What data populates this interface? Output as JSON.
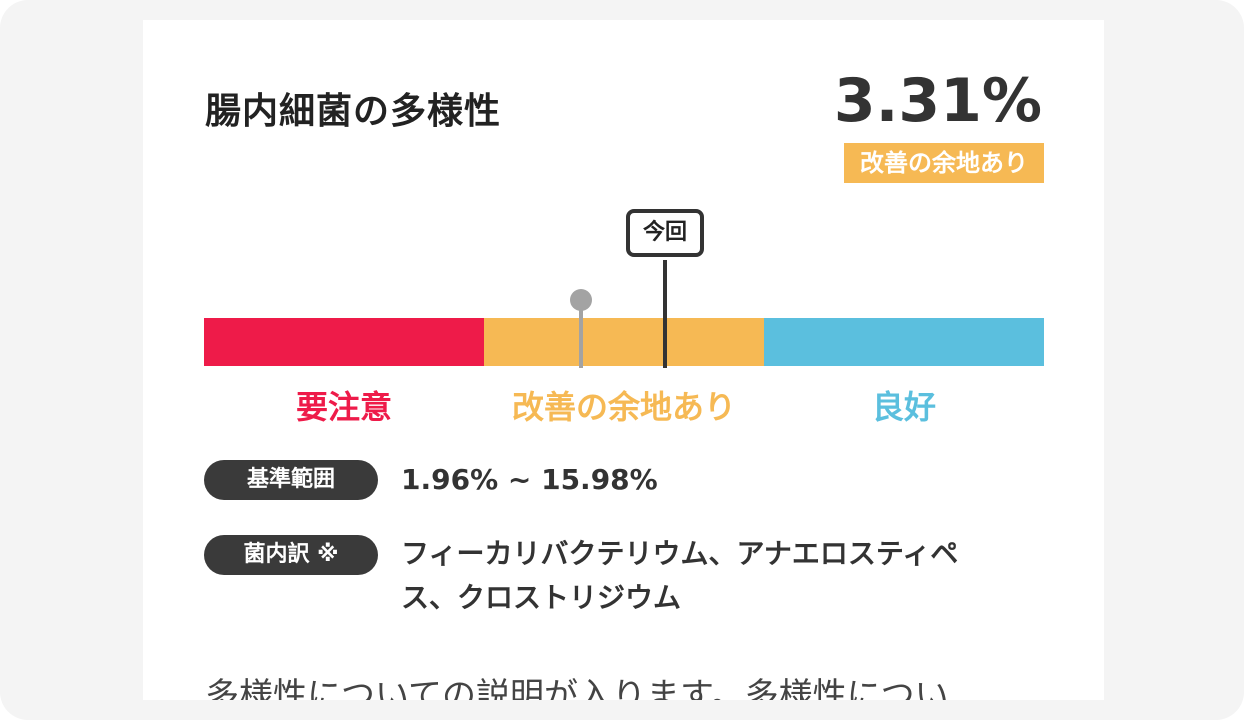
{
  "card": {
    "title": "腸内細菌の多様性",
    "score": "3.31%",
    "status": "改善の余地あり"
  },
  "scale": {
    "current_marker_label": "今回",
    "zones": [
      "要注意",
      "改善の余地あり",
      "良好"
    ],
    "colors": {
      "caution": "#ee1b49",
      "improve": "#f6b954",
      "good": "#5bbfde",
      "previous_marker": "#a3a3a3",
      "current_marker": "#333333"
    }
  },
  "reference": {
    "label": "基準範囲",
    "value": "1.96% ~ 15.98%"
  },
  "breakdown": {
    "label": "菌内訳 ※",
    "value": "フィーカリバクテリウム、アナエロスティペス、クロストリジウム"
  },
  "description": "多様性についての説明が入ります。多様性につい"
}
